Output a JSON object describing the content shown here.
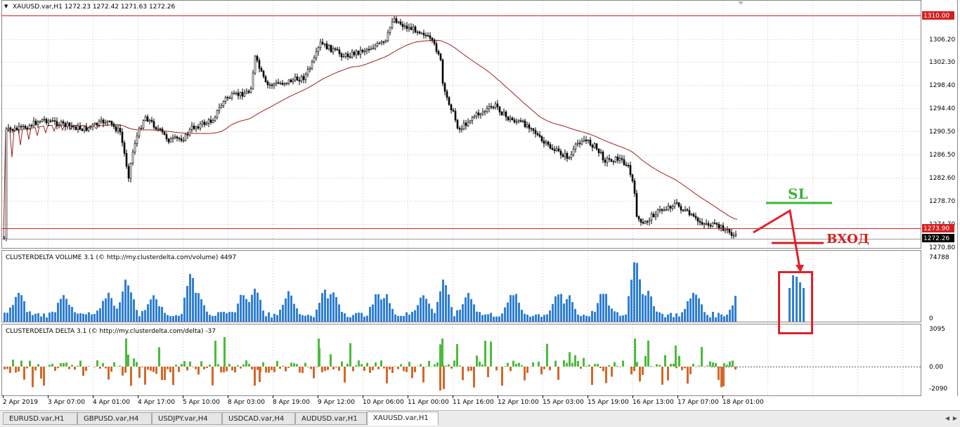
{
  "header": {
    "menu_glyph": "▼",
    "title": "XAUUSD.var,H1  1272.23 1272.42 1271.63 1272.26"
  },
  "price_axis": {
    "labels": [
      "1310.00",
      "1306.20",
      "1302.30",
      "1298.40",
      "1294.40",
      "1290.50",
      "1286.50",
      "1282.60",
      "1278.70",
      "1274.70",
      "1273.90",
      "1272.26",
      "1270.80"
    ],
    "highlight_top": {
      "value": "1310.00",
      "color": "#d42020"
    },
    "highlight_line": {
      "value": "1273.90",
      "color": "#d42020"
    },
    "current": {
      "value": "1272.26",
      "color": "#000000"
    }
  },
  "volume_panel": {
    "title": "CLUSTERDELTA VOLUME 3.1 (© http://my.clusterdelta.com/volume) 4497",
    "axis_top": "74788",
    "axis_bottom": "0",
    "bar_color": "#2f7fd2"
  },
  "delta_panel": {
    "title": "CLUSTERDELTA DELTA 3.1 (© http://my.clusterdelta.com/delta) -37",
    "axis_top": "3095",
    "axis_mid": "0.00",
    "axis_bottom": "-2090",
    "positive_color": "#4cbb3c",
    "negative_color": "#d2692a"
  },
  "time_axis": [
    "2 Apr 2019",
    "3 Apr 07:00",
    "4 Apr 01:00",
    "4 Apr 17:00",
    "5 Apr 10:00",
    "8 Apr 03:00",
    "8 Apr 19:00",
    "9 Apr 12:00",
    "10 Apr 06:00",
    "11 Apr 00:00",
    "11 Apr 16:00",
    "12 Apr 10:00",
    "15 Apr 03:00",
    "15 Apr 19:00",
    "16 Apr 13:00",
    "17 Apr 07:00",
    "18 Apr 01:00"
  ],
  "annotations": {
    "sl_label": "SL",
    "sl_color": "#3cb43c",
    "entry_label": "ВХОД",
    "entry_color": "#d42020",
    "box_color": "#e0202a"
  },
  "tabs": [
    "EURUSD.var,H1",
    "GBPUSD.var,H4",
    "USDJPY.var,H4",
    "USDCAD.var,H4",
    "AUDUSD.var,H1",
    "XAUUSD.var,H1"
  ],
  "active_tab": "XAUUSD.var,H1",
  "colors": {
    "candle": "#000000",
    "ma_line": "#a02020",
    "level_line": "#d42020",
    "grid": "#c8c8c8"
  }
}
